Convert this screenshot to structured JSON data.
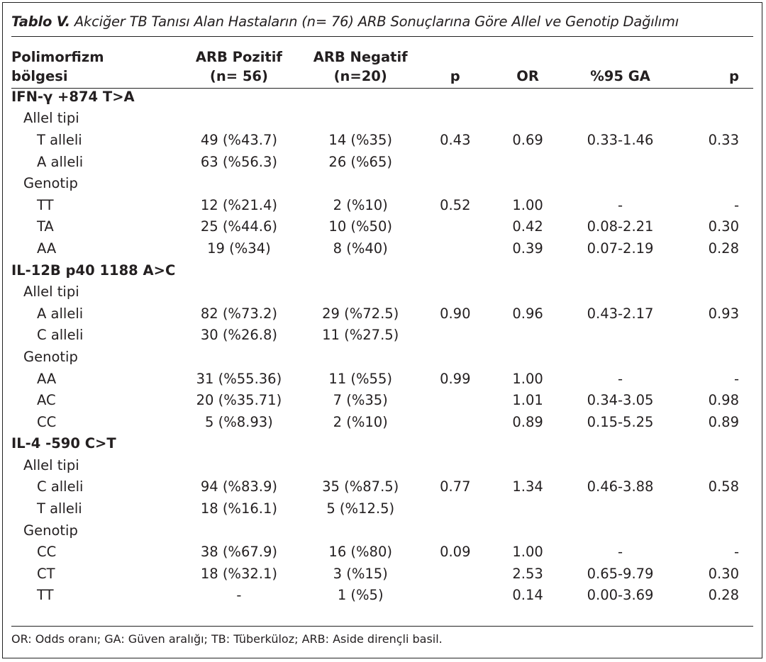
{
  "caption": {
    "label": "Tablo V.",
    "text": "Akciğer TB Tanısı Alan Hastaların (n= 76) ARB Sonuçlarına Göre Allel ve Genotip Dağılımı"
  },
  "header": {
    "col0_line1": "Polimorfizm",
    "col0_line2": "bölgesi",
    "col1_line1": "ARB Pozitif",
    "col1_line2": "(n= 56)",
    "col2_line1": "ARB Negatif",
    "col2_line2": "(n=20)",
    "col3": "p",
    "col4": "OR",
    "col5": "%95 GA",
    "col6": "p"
  },
  "rows": [
    {
      "type": "sec",
      "cells": [
        "IFN-γ +874 T>A",
        "",
        "",
        "",
        "",
        "",
        ""
      ]
    },
    {
      "type": "sub",
      "cells": [
        "Allel tipi",
        "",
        "",
        "",
        "",
        "",
        ""
      ]
    },
    {
      "type": "row",
      "cells": [
        "T alleli",
        "49 (%43.7)",
        "14 (%35)",
        "0.43",
        "0.69",
        "0.33-1.46",
        "0.33"
      ]
    },
    {
      "type": "row",
      "cells": [
        "A alleli",
        "63 (%56.3)",
        "26 (%65)",
        "",
        "",
        "",
        ""
      ]
    },
    {
      "type": "sub",
      "cells": [
        "Genotip",
        "",
        "",
        "",
        "",
        "",
        ""
      ]
    },
    {
      "type": "row",
      "cells": [
        "TT",
        "12 (%21.4)",
        "2 (%10)",
        "0.52",
        "1.00",
        "-",
        "-"
      ]
    },
    {
      "type": "row",
      "cells": [
        "TA",
        "25 (%44.6)",
        "10 (%50)",
        "",
        "0.42",
        "0.08-2.21",
        "0.30"
      ]
    },
    {
      "type": "row",
      "cells": [
        "AA",
        "19 (%34)",
        "8 (%40)",
        "",
        "0.39",
        "0.07-2.19",
        "0.28"
      ]
    },
    {
      "type": "sec",
      "cells": [
        "IL-12B p40 1188 A>C",
        "",
        "",
        "",
        "",
        "",
        ""
      ]
    },
    {
      "type": "sub",
      "cells": [
        "Allel tipi",
        "",
        "",
        "",
        "",
        "",
        ""
      ]
    },
    {
      "type": "row",
      "cells": [
        "A alleli",
        "82 (%73.2)",
        "29 (%72.5)",
        "0.90",
        "0.96",
        "0.43-2.17",
        "0.93"
      ]
    },
    {
      "type": "row",
      "cells": [
        "C alleli",
        "30 (%26.8)",
        "11 (%27.5)",
        "",
        "",
        "",
        ""
      ]
    },
    {
      "type": "sub",
      "cells": [
        "Genotip",
        "",
        "",
        "",
        "",
        "",
        ""
      ]
    },
    {
      "type": "row",
      "cells": [
        "AA",
        "31 (%55.36)",
        "11 (%55)",
        "0.99",
        "1.00",
        "-",
        "-"
      ]
    },
    {
      "type": "row",
      "cells": [
        "AC",
        "20 (%35.71)",
        "7 (%35)",
        "",
        "1.01",
        "0.34-3.05",
        "0.98"
      ]
    },
    {
      "type": "row",
      "cells": [
        "CC",
        "5 (%8.93)",
        "2 (%10)",
        "",
        "0.89",
        "0.15-5.25",
        "0.89"
      ]
    },
    {
      "type": "sec",
      "cells": [
        "IL-4 -590 C>T",
        "",
        "",
        "",
        "",
        "",
        ""
      ]
    },
    {
      "type": "sub",
      "cells": [
        "Allel tipi",
        "",
        "",
        "",
        "",
        "",
        ""
      ]
    },
    {
      "type": "row",
      "cells": [
        "C alleli",
        "94 (%83.9)",
        "35 (%87.5)",
        "0.77",
        "1.34",
        "0.46-3.88",
        "0.58"
      ]
    },
    {
      "type": "row",
      "cells": [
        "T alleli",
        "18 (%16.1)",
        "5 (%12.5)",
        "",
        "",
        "",
        ""
      ]
    },
    {
      "type": "sub",
      "cells": [
        "Genotip",
        "",
        "",
        "",
        "",
        "",
        ""
      ]
    },
    {
      "type": "row",
      "cells": [
        "CC",
        "38 (%67.9)",
        "16 (%80)",
        "0.09",
        "1.00",
        "-",
        "-"
      ]
    },
    {
      "type": "row",
      "cells": [
        "CT",
        "18 (%32.1)",
        "3 (%15)",
        "",
        "2.53",
        "0.65-9.79",
        "0.30"
      ]
    },
    {
      "type": "row",
      "cells": [
        "TT",
        "-",
        "1 (%5)",
        "",
        "0.14",
        "0.00-3.69",
        "0.28"
      ]
    }
  ],
  "footnote": "OR: Odds oranı; GA: Güven aralığı; TB: Tüberküloz; ARB: Aside dirençli basil."
}
